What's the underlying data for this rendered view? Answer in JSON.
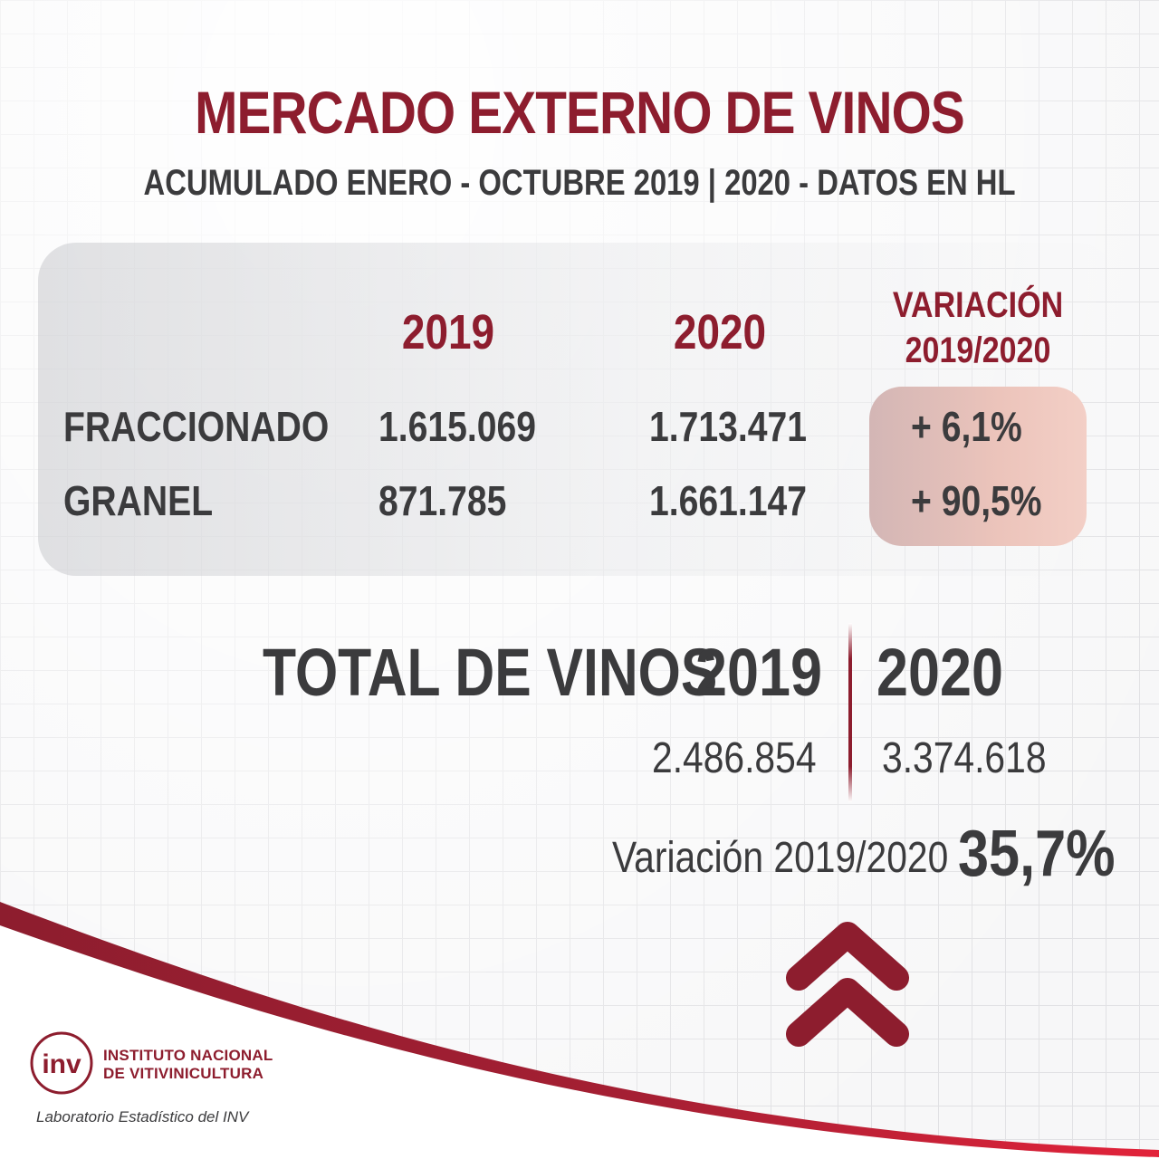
{
  "title": "MERCADO EXTERNO DE VINOS",
  "subtitle": "ACUMULADO ENERO - OCTUBRE  2019 | 2020  -  DATOS EN HL",
  "table": {
    "col_2019": "2019",
    "col_2020": "2020",
    "col_var_line1": "VARIACIÓN",
    "col_var_line2": "2019/2020",
    "rows": [
      {
        "label": "FRACCIONADO",
        "v2019": "1.615.069",
        "v2020": "1.713.471",
        "variation": "+ 6,1%"
      },
      {
        "label": "GRANEL",
        "v2019": "871.785",
        "v2020": "1.661.147",
        "variation": "+ 90,5%"
      }
    ]
  },
  "total": {
    "label": "TOTAL DE VINOS",
    "year_2019": "2019",
    "year_2020": "2020",
    "value_2019": "2.486.854",
    "value_2020": "3.374.618",
    "variation_label": "Variación 2019/2020",
    "variation_value": "35,7%"
  },
  "footer": {
    "org_line1": "INSTITUTO NACIONAL",
    "org_line2": "DE VITIVINICULTURA",
    "logo_text": "inv",
    "lab": "Laboratorio Estadístico del INV"
  },
  "icons": {
    "trend": "double-chevron-up-icon",
    "logo": "inv-logo-icon"
  },
  "colors": {
    "accent": "#8d1d2e",
    "text": "#3b3b3d",
    "variation_box": "#ecc4bb"
  }
}
